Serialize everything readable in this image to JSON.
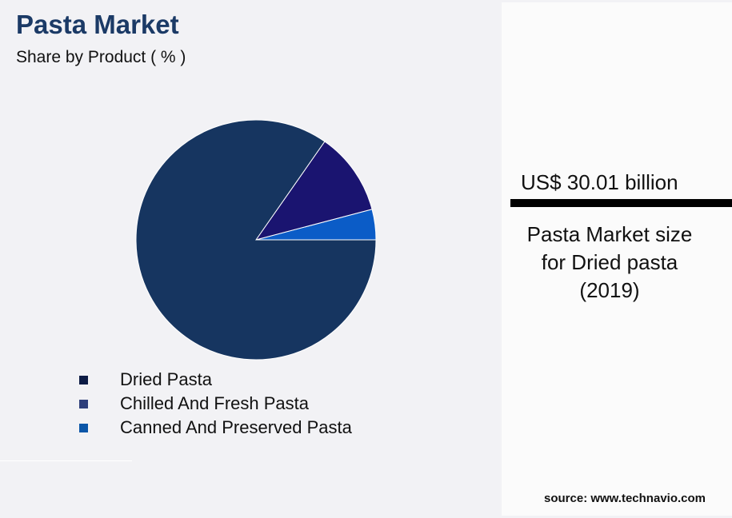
{
  "chart_data": {
    "type": "pie",
    "title": "Pasta Market",
    "subtitle": "Share by Product ( % )",
    "slices": [
      {
        "name": "Dried Pasta",
        "value": 84.7,
        "color": "#163560",
        "legend_color": "#0d1c45"
      },
      {
        "name": "Chilled And Fresh Pasta",
        "value": 11.2,
        "color": "#1a1470",
        "legend_color": "#2e3f7a"
      },
      {
        "name": "Canned And Preserved Pasta",
        "value": 4.1,
        "color": "#0b5cc7",
        "legend_color": "#0b56a8"
      }
    ],
    "legend_position": "bottom"
  },
  "panel": {
    "value": "US$ 30.01 billion",
    "description_lines": [
      "Pasta Market size",
      "for Dried pasta",
      "(2019)"
    ]
  },
  "source": "source: www.technavio.com"
}
